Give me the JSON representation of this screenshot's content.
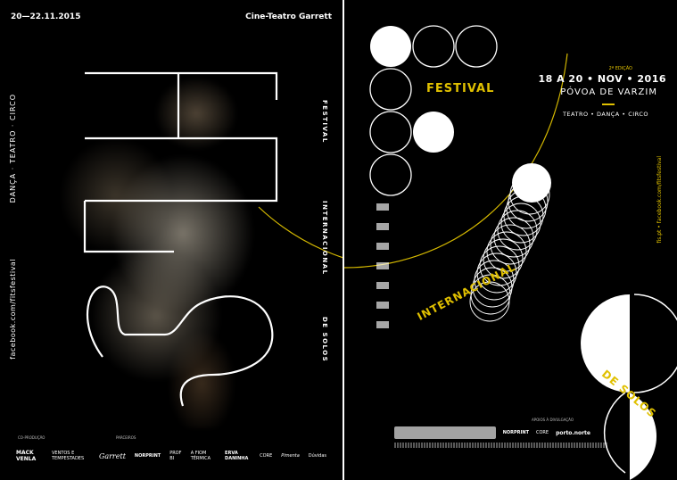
{
  "poster_left": {
    "dates": "20—22.11.2015",
    "venue": "Cine-Teatro Garrett",
    "disciplines": "DANÇA · TEATRO · CIRCO",
    "facebook": "facebook.com/fitsfestival",
    "title_festival": "FESTIVAL",
    "title_internacional": "INTERNACIONAL",
    "title_solos": "DE SOLOS",
    "coproducao_label": "CO-PRODUÇÃO",
    "parceiros_label": "PARCEIROS",
    "partners": [
      "MACK VENLA",
      "VENTOS E TEMPESTADES",
      "Garrett",
      "NORPRINT",
      "PROF BI",
      "A FIOM TÉRMICA",
      "ERVA DANINHA",
      "CORE",
      "Pimenta",
      "Dúvidas"
    ]
  },
  "poster_right": {
    "festival": "FESTIVAL",
    "edicao": "2ª EDIÇÃO",
    "dates": "18 A 20 • NOV • 2016",
    "city": "PÓVOA DE VARZIM",
    "disciplines": "TEATRO • DANÇA • CIRCO",
    "internacional": "INTERNACIONAL",
    "solos": "DE SOLOS",
    "web": "fis.pt • facebook.com/fitsfestival",
    "apoio_label": "APOIOS À DIVULGAÇÃO",
    "partners": [
      "NORPRINT",
      "CORE",
      "porto.norte"
    ]
  },
  "colors": {
    "background": "#000000",
    "accent_yellow": "#e0c000",
    "text": "#ffffff"
  }
}
